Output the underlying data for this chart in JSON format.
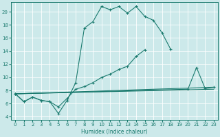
{
  "bg_color": "#cce9ea",
  "grid_color": "#b8d8da",
  "line_color": "#1a7a6e",
  "xlabel": "Humidex (Indice chaleur)",
  "xlim": [
    -0.5,
    23.5
  ],
  "ylim": [
    3.5,
    21.5
  ],
  "yticks": [
    4,
    6,
    8,
    10,
    12,
    14,
    16,
    18,
    20
  ],
  "xticks": [
    0,
    1,
    2,
    3,
    4,
    5,
    6,
    7,
    8,
    9,
    10,
    11,
    12,
    13,
    14,
    15,
    16,
    17,
    18,
    19,
    20,
    21,
    22,
    23
  ],
  "lines": [
    {
      "x": [
        0,
        1,
        2,
        3,
        4,
        5,
        6,
        7,
        8,
        9,
        10,
        11,
        12,
        13,
        14,
        15,
        16,
        17,
        18
      ],
      "y": [
        7.5,
        6.3,
        7.0,
        6.5,
        6.3,
        4.5,
        6.5,
        9.2,
        17.5,
        18.5,
        20.8,
        20.3,
        20.8,
        19.8,
        20.8,
        19.3,
        18.7,
        16.8,
        14.3
      ],
      "marker": true
    },
    {
      "x": [
        0,
        1,
        2,
        3,
        4,
        5,
        6,
        7,
        8,
        9,
        10,
        11,
        12,
        13,
        14,
        15,
        16,
        17,
        18,
        19,
        20,
        21,
        22,
        23
      ],
      "y": [
        7.5,
        6.3,
        7.0,
        6.5,
        6.3,
        5.5,
        6.8,
        8.2,
        8.6,
        9.2,
        10.0,
        10.5,
        11.2,
        11.7,
        13.2,
        14.2,
        null,
        null,
        null,
        null,
        null,
        null,
        null,
        null
      ],
      "marker": true
    },
    {
      "x": [
        0,
        23
      ],
      "y": [
        7.5,
        8.5
      ],
      "marker": false
    },
    {
      "x": [
        0,
        20,
        21,
        22,
        23
      ],
      "y": [
        7.5,
        8.2,
        11.5,
        8.3,
        8.5
      ],
      "marker": true
    }
  ]
}
